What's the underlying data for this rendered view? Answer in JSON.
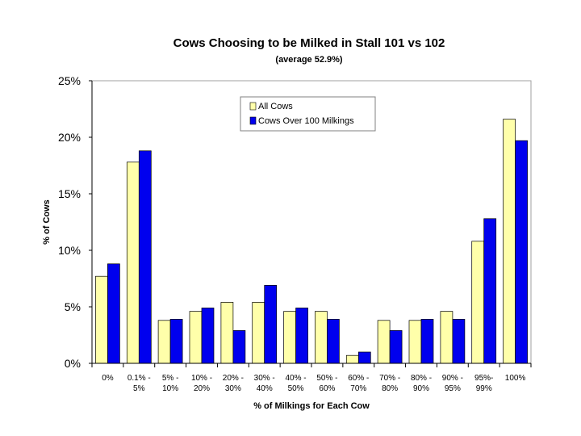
{
  "chart_data": {
    "type": "bar",
    "title": "Cows Choosing to be Milked in Stall 101 vs 102",
    "subtitle": "(average 52.9%)",
    "xlabel": "% of Milkings for Each Cow",
    "ylabel": "% of Cows",
    "ylim": [
      0,
      25
    ],
    "yticks": [
      "0%",
      "5%",
      "10%",
      "15%",
      "20%",
      "25%"
    ],
    "ytick_values": [
      0,
      5,
      10,
      15,
      20,
      25
    ],
    "grid": false,
    "legend_position": "top-center",
    "categories": [
      [
        "0%"
      ],
      [
        "0.1% -",
        "5%"
      ],
      [
        "5% -",
        "10%"
      ],
      [
        "10% -",
        "20%"
      ],
      [
        "20% -",
        "30%"
      ],
      [
        "30% -",
        "40%"
      ],
      [
        "40% -",
        "50%"
      ],
      [
        "50% -",
        "60%"
      ],
      [
        "60% -",
        "70%"
      ],
      [
        "70% -",
        "80%"
      ],
      [
        "80% -",
        "90%"
      ],
      [
        "90% -",
        "95%"
      ],
      [
        "95%-",
        "99%"
      ],
      [
        "100%"
      ]
    ],
    "series": [
      {
        "name": "All Cows",
        "color": "#ffffaa",
        "values": [
          7.7,
          17.8,
          3.8,
          4.6,
          5.4,
          5.4,
          4.6,
          4.6,
          0.7,
          3.8,
          3.8,
          4.6,
          10.8,
          21.6
        ]
      },
      {
        "name": "Cows Over 100 Milkings",
        "color": "#0000ee",
        "values": [
          8.8,
          18.8,
          3.9,
          4.9,
          2.9,
          6.9,
          4.9,
          3.9,
          1.0,
          2.9,
          3.9,
          3.9,
          12.8,
          19.7
        ]
      }
    ]
  }
}
